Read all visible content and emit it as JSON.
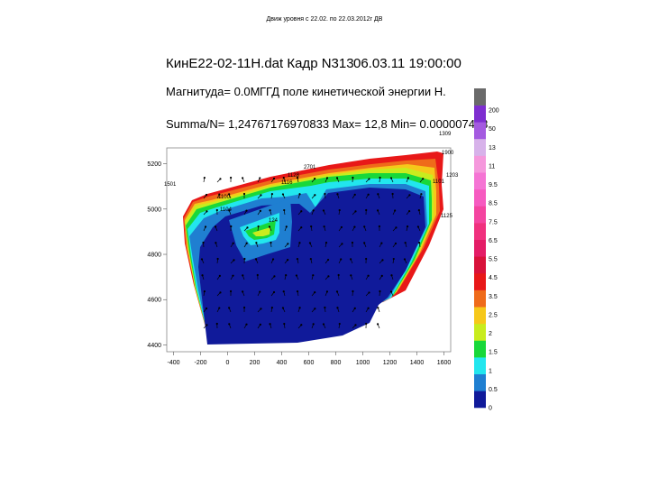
{
  "slide_title": "Движ уровня с 22.02. по 22.03.2012г ДВ",
  "header": {
    "file_label": "КинЕ22-02-11Н.dat Кадр N313",
    "datetime": "06.03.11 19:00:00",
    "magnitude": "Магнитуда= 0.0М",
    "field_name": "ГГД поле кинетической энергии Н.",
    "summary": "Summa/N= 1,24767176970833 Max= 12,8 Min= 0.000007473"
  },
  "chart_data": {
    "type": "heatmap",
    "title": "ГГД поле кинетической энергии Н.",
    "xlim": [
      -450,
      1650
    ],
    "ylim": [
      4370,
      5270
    ],
    "x_ticks": [
      "-400",
      "-200",
      "0",
      "200",
      "400",
      "600",
      "800",
      "1000",
      "1200",
      "1400",
      "1600"
    ],
    "y_ticks": [
      "5200",
      "5000",
      "4800",
      "4600",
      "4400"
    ],
    "colorbar": {
      "levels": [
        "0",
        "0.5",
        "1",
        "1.5",
        "2",
        "2.5",
        "3.5",
        "4.5",
        "5.5",
        "6.5",
        "7.5",
        "8.5",
        "9.5",
        "11",
        "13",
        "50",
        "200"
      ],
      "colors": [
        "#101a9a",
        "#1f7fd1",
        "#22e6ee",
        "#18d83a",
        "#c8ec1e",
        "#f6c81a",
        "#ef6b1a",
        "#e81818",
        "#d8123a",
        "#e41c66",
        "#f0307e",
        "#f444a0",
        "#f65ac0",
        "#f574d4",
        "#f598dc",
        "#d7b2ea",
        "#a45ae0",
        "#7e2ed0",
        "#6a6a6a"
      ]
    },
    "station_labels": [
      "1309",
      "1900",
      "2701",
      "1128",
      "1116",
      "1203",
      "1101",
      "1125",
      "1104",
      "1100",
      "124",
      "1501"
    ]
  }
}
